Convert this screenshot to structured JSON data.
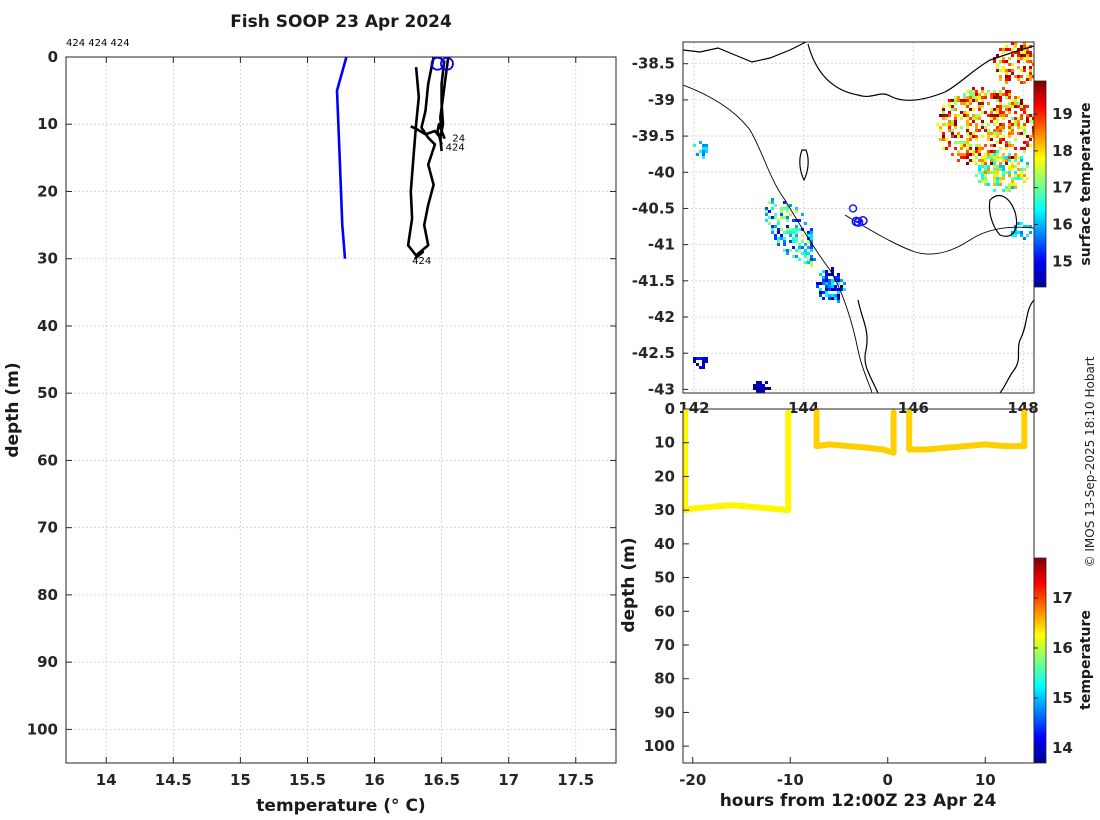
{
  "title": "Fish SOOP 23 Apr 2024",
  "id_labels_top": "424 424 424",
  "credit": "© IMOS 13-Sep-2025 18:10 Hobart",
  "chart_data": [
    {
      "type": "line",
      "panel": "temperature-depth-profile",
      "xlabel": "temperature (° C)",
      "ylabel": "depth (m)",
      "xlim": [
        13.7,
        17.8
      ],
      "ylim": [
        105,
        0
      ],
      "xticks": [
        "14",
        "14.5",
        "15",
        "15.5",
        "16",
        "16.5",
        "17",
        "17.5"
      ],
      "yticks": [
        "0",
        "10",
        "20",
        "30",
        "40",
        "50",
        "60",
        "70",
        "80",
        "90",
        "100"
      ],
      "grid": true,
      "series": [
        {
          "color": "#0000ff",
          "x": [
            15.79,
            15.72,
            15.74,
            15.76,
            15.78
          ],
          "y": [
            0,
            5,
            15,
            25,
            30
          ]
        },
        {
          "color": "#000000",
          "x": [
            16.31,
            16.33,
            16.31,
            16.29,
            16.27,
            16.28,
            16.25,
            16.31,
            16.36,
            16.3
          ],
          "y": [
            1.5,
            6,
            10,
            15,
            20,
            24,
            28,
            29.5,
            29,
            30
          ]
        },
        {
          "color": "#000000",
          "x": [
            16.44,
            16.4,
            16.38,
            16.35,
            16.4,
            16.45,
            16.4,
            16.44,
            16.4,
            16.37,
            16.4,
            16.31
          ],
          "y": [
            0,
            4,
            8,
            10.5,
            12,
            13,
            16,
            19,
            22,
            25,
            28,
            29.5
          ]
        },
        {
          "color": "#000000",
          "x": [
            16.55,
            16.53,
            16.51,
            16.49,
            16.5,
            16.52,
            16.48,
            16.47,
            16.5
          ],
          "y": [
            0,
            3,
            6,
            9,
            11,
            12,
            10,
            11,
            13
          ]
        },
        {
          "color": "#000000",
          "x": [
            16.52,
            16.5,
            16.5,
            16.51,
            16.49,
            16.5
          ],
          "y": [
            0.5,
            4,
            7,
            10,
            12,
            14
          ]
        },
        {
          "color": "#000000",
          "x": [
            16.27,
            16.32,
            16.38,
            16.45,
            16.5
          ],
          "y": [
            10.3,
            10.8,
            11.5,
            11.0,
            12.2
          ]
        }
      ],
      "markers": [
        {
          "x": 16.47,
          "y": 1,
          "color": "#0000ff"
        },
        {
          "x": 16.54,
          "y": 1,
          "color": "#0000ff"
        }
      ],
      "annotations": [
        {
          "text": "24",
          "x": 16.58,
          "y": 12
        },
        {
          "text": "424",
          "x": 16.53,
          "y": 13.3
        },
        {
          "text": "424",
          "x": 16.28,
          "y": 30.2
        }
      ]
    },
    {
      "type": "heatmap",
      "panel": "sea-surface-temperature-map",
      "xlim": [
        141.8,
        148.2
      ],
      "ylim": [
        -43.05,
        -38.2
      ],
      "xticks": [
        "142",
        "144",
        "146",
        "148"
      ],
      "yticks": [
        "-38.5",
        "-39",
        "-39.5",
        "-40",
        "-40.5",
        "-41",
        "-41.5",
        "-42",
        "-42.5",
        "-43"
      ],
      "colorbar_label": "surface temperature",
      "colorbar_ticks": [
        "15",
        "16",
        "17",
        "18",
        "19"
      ],
      "colorbar_range": [
        14.3,
        19.9
      ],
      "track_points": [
        [
          144.96,
          -40.68
        ],
        [
          145.0,
          -40.69
        ],
        [
          145.08,
          -40.67
        ]
      ],
      "track_marker": [
        144.9,
        -40.5
      ]
    },
    {
      "type": "scatter",
      "panel": "depth-time-section",
      "xlabel": "hours from 12:00Z 23 Apr 24",
      "ylabel": "depth (m)",
      "xlim": [
        -21,
        15
      ],
      "ylim": [
        105,
        0
      ],
      "xticks": [
        "-20",
        "-10",
        "0",
        "10"
      ],
      "yticks": [
        "0",
        "10",
        "20",
        "30",
        "40",
        "50",
        "60",
        "70",
        "80",
        "90",
        "100"
      ],
      "colorbar_label": "temperature",
      "colorbar_ticks": [
        "14",
        "15",
        "16",
        "17"
      ],
      "colorbar_range": [
        13.7,
        17.8
      ],
      "series": [
        {
          "x": [
            -20.8,
            -20.8,
            -20,
            -18,
            -16,
            -14,
            -12,
            -10.2,
            -10.2
          ],
          "y": [
            1,
            30,
            29.5,
            29,
            28.5,
            29,
            29.5,
            30,
            1
          ],
          "temperature": 16.3
        },
        {
          "x": [
            -7.3,
            -7.3,
            -6,
            -4,
            -2,
            -0.5,
            0.6,
            0.6
          ],
          "y": [
            1,
            11,
            10.5,
            11,
            11.5,
            12,
            13,
            1
          ],
          "temperature": 16.45
        },
        {
          "x": [
            2.2,
            2.2,
            4,
            6,
            8,
            10,
            12,
            14,
            14
          ],
          "y": [
            1,
            12,
            12,
            11.5,
            11,
            10.5,
            11,
            11,
            1
          ],
          "temperature": 16.45
        }
      ]
    }
  ]
}
